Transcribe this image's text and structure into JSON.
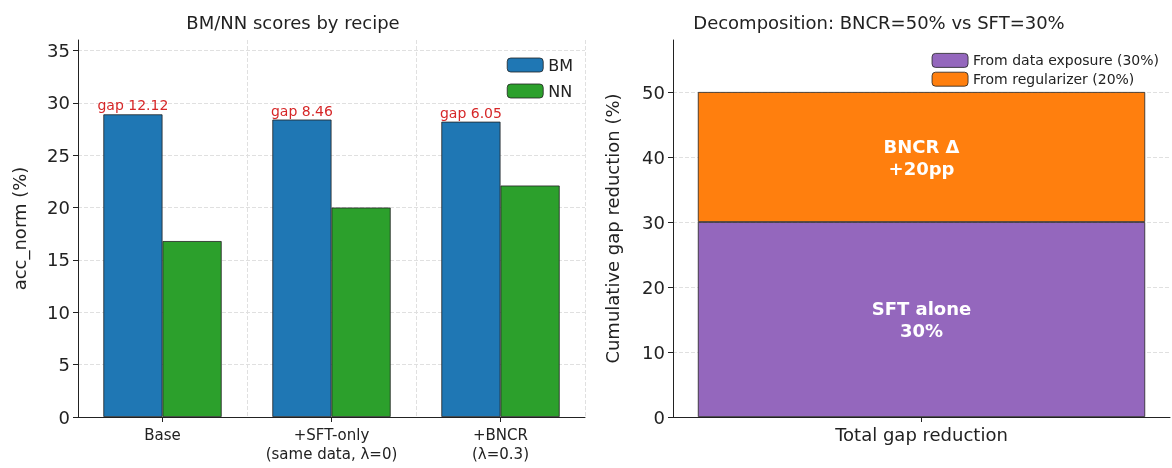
{
  "chart_data": [
    {
      "type": "bar",
      "title": "BM/NN scores by recipe",
      "ylabel": "acc_norm (%)",
      "categories": [
        "Base",
        "+SFT-only\n(same data, λ=0)",
        "+BNCR\n(λ=0.3)"
      ],
      "series": [
        {
          "name": "BM",
          "color": "#1f77b4",
          "values": [
            28.9,
            28.4,
            28.2
          ]
        },
        {
          "name": "NN",
          "color": "#2ca02c",
          "values": [
            16.8,
            20.0,
            22.1
          ]
        }
      ],
      "ylim": [
        0,
        36
      ],
      "yticks": [
        0,
        5,
        10,
        15,
        20,
        25,
        30,
        35
      ],
      "grid": true,
      "legend": "top right",
      "annotations": [
        {
          "text": "gap 12.12",
          "x": "Base",
          "y": 28.9
        },
        {
          "text": "gap 8.46",
          "x": "+SFT-only\n(same data, λ=0)",
          "y": 28.4
        },
        {
          "text": "gap 6.05",
          "x": "+BNCR\n(λ=0.3)",
          "y": 28.2
        }
      ]
    },
    {
      "type": "bar",
      "title": "Decomposition: BNCR=50% vs SFT=30%",
      "ylabel": "Cumulative gap reduction (%)",
      "categories": [
        "Total gap reduction"
      ],
      "stacked": true,
      "series": [
        {
          "name": "From data exposure (30%)",
          "color": "#9467bd",
          "values": [
            30
          ],
          "value_labels": [
            "SFT alone\n30%"
          ]
        },
        {
          "name": "From regularizer (20%)",
          "color": "#ff7f0e",
          "values": [
            20
          ],
          "value_labels": [
            "BNCR Δ\n+20pp"
          ]
        }
      ],
      "ylim": [
        0,
        58
      ],
      "yticks": [
        0,
        10,
        20,
        30,
        40,
        50
      ],
      "grid": "y",
      "legend": "top right"
    }
  ]
}
